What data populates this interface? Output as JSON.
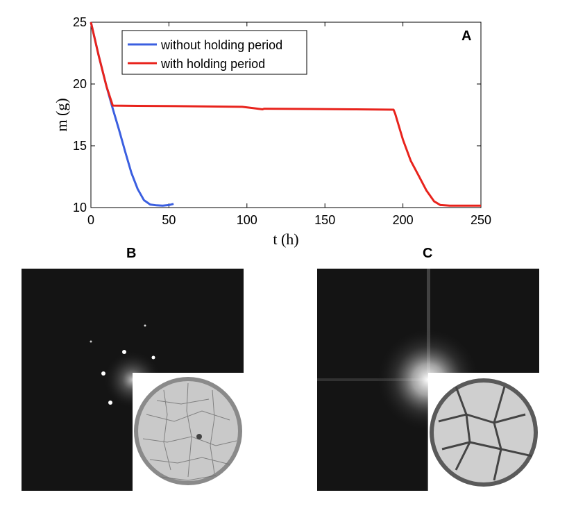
{
  "chart_data": {
    "type": "line",
    "panel_label": "A",
    "xlabel": "t (h)",
    "ylabel": "m (g)",
    "xlim": [
      0,
      250
    ],
    "ylim": [
      10,
      25
    ],
    "xticks": [
      0,
      50,
      100,
      150,
      200,
      250
    ],
    "yticks": [
      10,
      15,
      20,
      25
    ],
    "grid": false,
    "legend_position": "top-left",
    "series": [
      {
        "name": "without holding period",
        "color": "#3b5fe0",
        "x": [
          0,
          5,
          10,
          14,
          18,
          22,
          26,
          30,
          34,
          38,
          42,
          46,
          50,
          53
        ],
        "y": [
          25,
          22.3,
          19.8,
          18.0,
          16.3,
          14.5,
          12.8,
          11.5,
          10.6,
          10.25,
          10.18,
          10.15,
          10.2,
          10.3
        ]
      },
      {
        "name": "with holding period",
        "color": "#e8231c",
        "x": [
          0,
          5,
          10,
          14,
          30,
          60,
          97,
          104,
          110,
          111,
          140,
          170,
          194,
          195,
          200,
          205,
          210,
          215,
          220,
          224,
          230,
          250
        ],
        "y": [
          25,
          22.3,
          19.8,
          18.25,
          18.23,
          18.2,
          18.15,
          18.05,
          17.95,
          18.0,
          17.98,
          17.95,
          17.92,
          17.6,
          15.5,
          13.8,
          12.6,
          11.4,
          10.5,
          10.2,
          10.15,
          10.15
        ]
      }
    ]
  },
  "panels": {
    "b_label": "B",
    "c_label": "C"
  },
  "colors": {
    "fft_background": "#141414",
    "fft_bright": "#ffffff",
    "dish_fill": "#c9c9c9",
    "crack": "#6e6e6e"
  }
}
